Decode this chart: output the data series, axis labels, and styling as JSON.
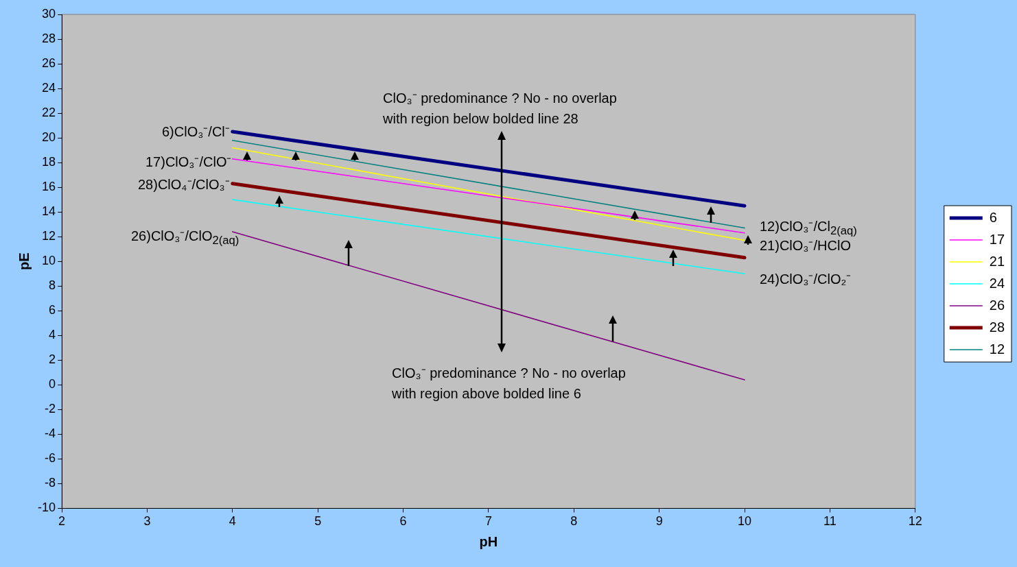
{
  "chart_data": {
    "type": "line",
    "xlabel": "pH",
    "ylabel": "pE",
    "xlim": [
      2,
      12
    ],
    "xticks": [
      2,
      3,
      4,
      5,
      6,
      7,
      8,
      9,
      10,
      11,
      12
    ],
    "ylim": [
      -10,
      30
    ],
    "yticks": [
      -10,
      -8,
      -6,
      -4,
      -2,
      0,
      2,
      4,
      6,
      8,
      10,
      12,
      14,
      16,
      18,
      20,
      22,
      24,
      26,
      28,
      30
    ],
    "grid": false,
    "legend": "right",
    "marker": "none",
    "line_style": "solid",
    "x": [
      4,
      10
    ],
    "series": [
      {
        "name": "6",
        "color": "#000080",
        "values": [
          20.5,
          14.5
        ]
      },
      {
        "name": "17",
        "color": "#ff00ff",
        "values": [
          18.3,
          12.3
        ]
      },
      {
        "name": "21",
        "color": "#ffff00",
        "values": [
          19.2,
          11.7
        ]
      },
      {
        "name": "24",
        "color": "#00ffff",
        "values": [
          15,
          9
        ]
      },
      {
        "name": "26",
        "color": "#800080",
        "values": [
          12.4,
          0.4
        ]
      },
      {
        "name": "28",
        "color": "#800000",
        "values": [
          16.3,
          10.3
        ]
      },
      {
        "name": "12",
        "color": "#008080",
        "values": [
          19.8,
          12.7
        ]
      }
    ],
    "annotations": [
      "6)ClO₃⁻/Cl⁻",
      "17)ClO₃⁻/ClO⁻",
      "28)ClO₄⁻/ClO₃⁻",
      "26)ClO₃⁻/ClO$_{2(aq)}$",
      "12)ClO₃⁻/Cl$_{2(aq)}$",
      "21)ClO₃⁻/HClO",
      "24)ClO₃⁻/ClO₂⁻",
      "ClO₃⁻ predominance ? No - no overlap\nwith region below bolded line 28",
      "ClO₃⁻ predominance ? No - no overlap\nwith region above bolded line 6"
    ]
  }
}
